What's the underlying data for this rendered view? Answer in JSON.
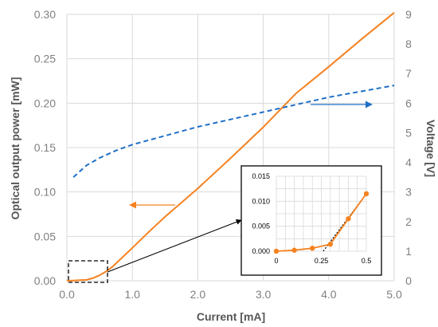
{
  "chart_data": [
    {
      "type": "line",
      "xlabel": "Current [mA]",
      "ylabel": "Optical output power [mW]",
      "y2label": "Voltage [V]",
      "xlim": [
        0,
        5
      ],
      "ylim": [
        0,
        0.3
      ],
      "y2lim": [
        0,
        9
      ],
      "xticks": [
        "0.0",
        "1.0",
        "2.0",
        "3.0",
        "4.0",
        "5.0"
      ],
      "yticks": [
        "0.00",
        "0.05",
        "0.10",
        "0.15",
        "0.20",
        "0.25",
        "0.30"
      ],
      "y2ticks": [
        "0",
        "1",
        "2",
        "3",
        "4",
        "5",
        "6",
        "7",
        "8",
        "9"
      ],
      "grid": true,
      "series": [
        {
          "axis": "left",
          "style": "solid",
          "color": "#F58220",
          "x": [
            0.0,
            0.1,
            0.2,
            0.3,
            0.4,
            0.5,
            0.6,
            0.7,
            0.8,
            0.9,
            1.0,
            1.25,
            1.5,
            2.0,
            2.5,
            3.0,
            3.5,
            4.0,
            4.5,
            5.0
          ],
          "y": [
            0.0,
            0.0003,
            0.0006,
            0.001,
            0.003,
            0.0062,
            0.0105,
            0.016,
            0.023,
            0.03,
            0.037,
            0.055,
            0.072,
            0.104,
            0.138,
            0.173,
            0.211,
            0.241,
            0.272,
            0.302
          ]
        },
        {
          "axis": "right",
          "style": "dashed",
          "color": "#1F6FC6",
          "x": [
            0.1,
            0.2,
            0.3,
            0.5,
            0.75,
            1.0,
            1.5,
            2.0,
            2.5,
            3.0,
            3.5,
            4.0,
            4.5,
            5.0
          ],
          "y": [
            3.5,
            3.7,
            3.9,
            4.15,
            4.4,
            4.6,
            4.9,
            5.2,
            5.45,
            5.7,
            5.95,
            6.2,
            6.4,
            6.6
          ]
        }
      ],
      "annotations": {
        "power_arrow_color": "#F58220",
        "voltage_arrow_color": "#1F6FC6"
      }
    },
    {
      "type": "scatter",
      "role": "inset",
      "xlim": [
        0,
        0.5
      ],
      "ylim": [
        0,
        0.015
      ],
      "xticks": [
        "0",
        "0.25",
        "0.5"
      ],
      "yticks": [
        "0.000",
        "0.005",
        "0.010",
        "0.015"
      ],
      "grid": true,
      "series": [
        {
          "color": "#F58220",
          "x": [
            0.0,
            0.1,
            0.2,
            0.3,
            0.4,
            0.5
          ],
          "y": [
            0.0,
            0.0002,
            0.0006,
            0.0014,
            0.0065,
            0.0115
          ]
        }
      ],
      "fit_line": {
        "x": [
          0.25,
          0.5
        ],
        "y": [
          -0.0005,
          0.0115
        ],
        "style": "dotted",
        "color": "#000000"
      }
    }
  ]
}
